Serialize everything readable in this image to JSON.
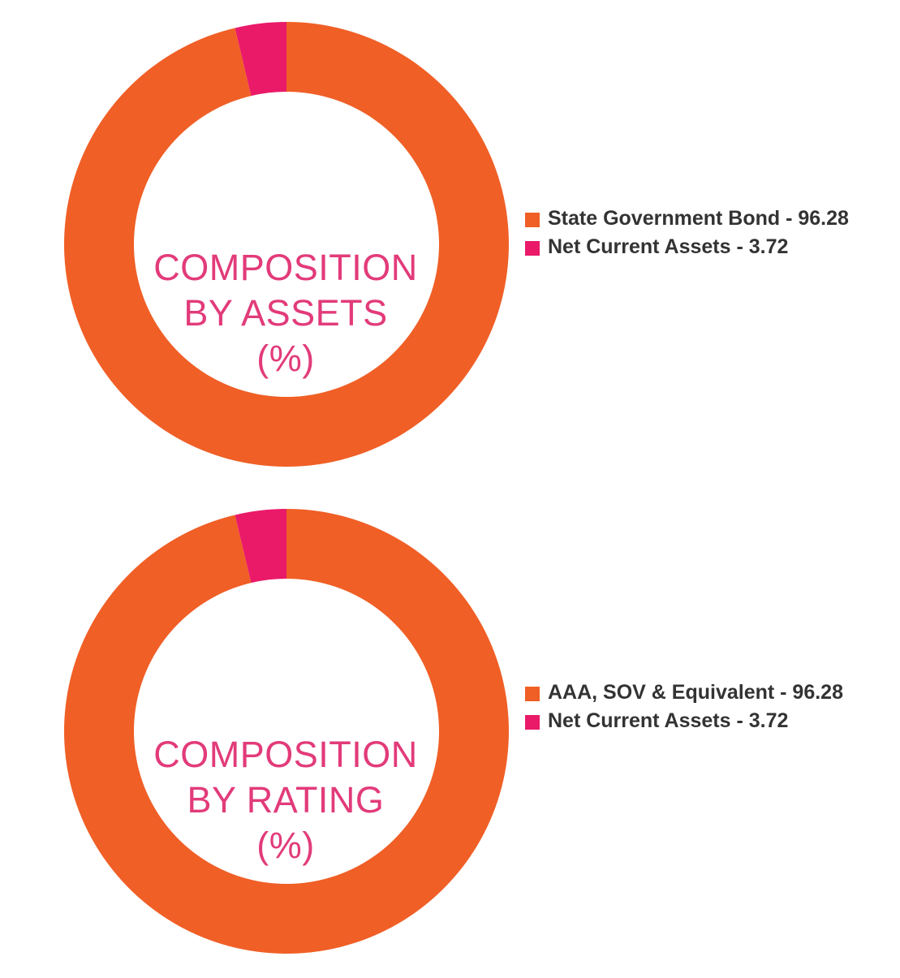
{
  "colors": {
    "orange": "#f05f26",
    "magenta": "#ea1a69",
    "title": "#e23b7a",
    "legend_text": "#333333"
  },
  "chart_data": [
    {
      "type": "pie",
      "title_lines": [
        "COMPOSITION",
        "BY ASSETS",
        "(%)"
      ],
      "categories": [
        "State Government Bond",
        "Net Current Assets"
      ],
      "values": [
        96.28,
        3.72
      ],
      "colors": [
        "#f05f26",
        "#ea1a69"
      ],
      "legend": [
        "State Government Bond - 96.28",
        "Net Current Assets - 3.72"
      ],
      "legend_position": "right"
    },
    {
      "type": "pie",
      "title_lines": [
        "COMPOSITION",
        "BY RATING",
        "(%)"
      ],
      "categories": [
        "AAA, SOV & Equivalent",
        "Net Current Assets"
      ],
      "values": [
        96.28,
        3.72
      ],
      "colors": [
        "#f05f26",
        "#ea1a69"
      ],
      "legend": [
        "AAA, SOV & Equivalent - 96.28",
        "Net Current Assets - 3.72"
      ],
      "legend_position": "right"
    }
  ]
}
